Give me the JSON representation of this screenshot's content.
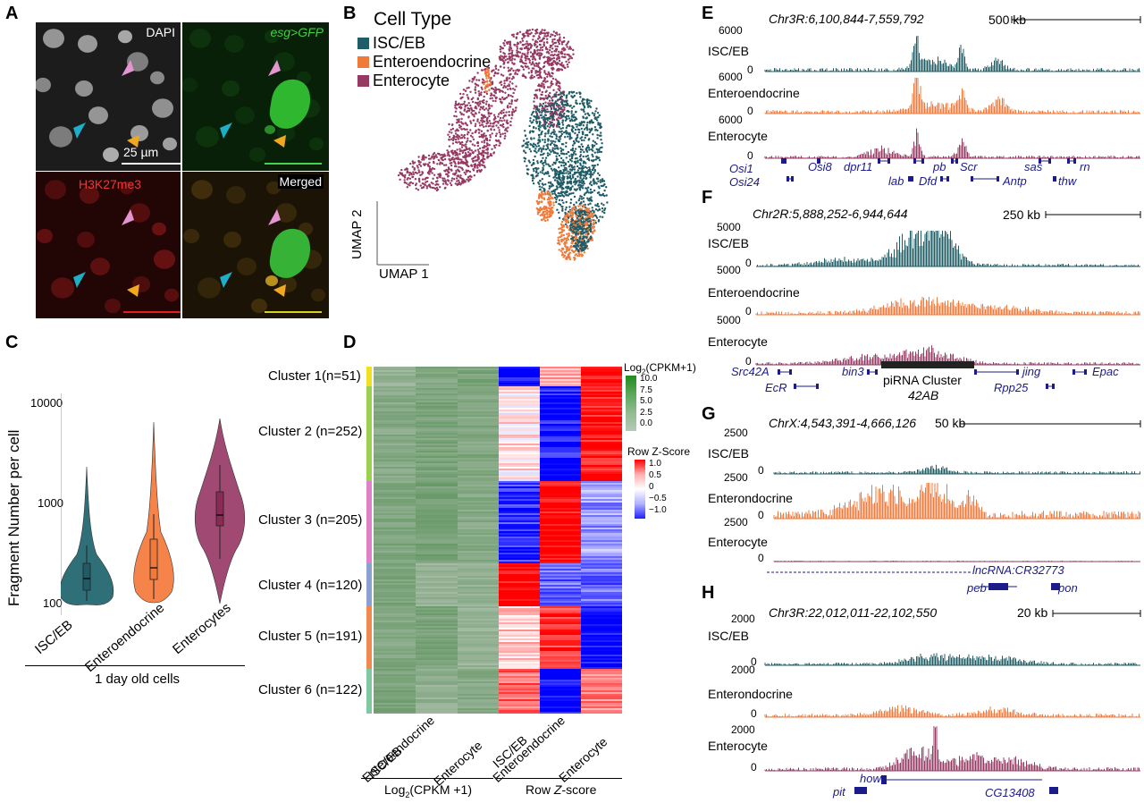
{
  "panel_letters": {
    "a": "A",
    "b": "B",
    "c": "C",
    "d": "D",
    "e": "E",
    "f": "F",
    "g": "G",
    "h": "H"
  },
  "micrographs": {
    "dapi": "DAPI",
    "esg": "esg>GFP",
    "h3k": "H3K27me3",
    "merged": "Merged",
    "scale": "25 µm",
    "colors": {
      "dapi_bg": "#1a1a1a",
      "esg_bg": "#072007",
      "h3k_bg": "#260707",
      "merged_bg": "#1c1408"
    }
  },
  "umap": {
    "legend_title": "Cell Type",
    "legend": [
      {
        "label": "ISC/EB",
        "color": "#1f5c66"
      },
      {
        "label": "Enteroendocrine",
        "color": "#f07a3a"
      },
      {
        "label": "Enterocyte",
        "color": "#963a63"
      }
    ],
    "axis_x": "UMAP 1",
    "axis_y": "UMAP 2"
  },
  "violin": {
    "ylabel": "Fragment Number per cell",
    "yticks": [
      "10000",
      "1000",
      "100"
    ],
    "categories": [
      "ISC/EB",
      "Enteroendocrine",
      "Enterocytes"
    ],
    "group_label": "1 day old cells"
  },
  "heatmap": {
    "clusters": [
      "Cluster 1(n=51)",
      "Cluster 2 (n=252)",
      "Cluster 3 (n=205)",
      "Cluster 4 (n=120)",
      "Cluster 5 (n=191)",
      "Cluster 6 (n=122)"
    ],
    "cols": [
      "ISC/EB",
      "Enteroendocrine",
      "Enterocyte",
      "ISC/EB",
      "Enteroendocrine",
      "Enterocyte"
    ],
    "group1": "Log2(CPKM +1)",
    "group2": "Row Z-score",
    "legend1_title": "Log2(CPKM+1)",
    "legend1_ticks": [
      "10.0",
      "7.5",
      "5.0",
      "2.5",
      "0.0"
    ],
    "legend2_title": "Row Z-Score",
    "legend2_ticks": [
      "1.0",
      "0.5",
      "0",
      "−0.5",
      "−1.0"
    ]
  },
  "tracks": {
    "e": {
      "region": "Chr3R:6,100,844-7,559,792",
      "scale": "500 kb",
      "ymax": "6000",
      "rows": [
        "ISC/EB",
        "Enteroendocrine",
        "Enterocyte"
      ],
      "genes": [
        "Osi1",
        "Osi8",
        "dpr11",
        "pb",
        "Scr",
        "sas",
        "rn",
        "Osi24",
        "lab",
        "Dfd",
        "Antp",
        "thw"
      ]
    },
    "f": {
      "region": "Chr2R:5,888,252-6,944,644",
      "scale": "250 kb",
      "ymax": "5000",
      "rows": [
        "ISC/EB",
        "Enteroendocrine",
        "Enterocyte"
      ],
      "genes": [
        "Src42A",
        "bin3",
        "jing",
        "Epac",
        "EcR",
        "Rpp25"
      ],
      "pirna": "piRNA Cluster",
      "pirna2": "42AB"
    },
    "g": {
      "region": "ChrX:4,543,391-4,666,126",
      "scale": "50 kb",
      "ymax": "2500",
      "rows": [
        "ISC/EB",
        "Enterondocrine",
        "Enterocyte"
      ],
      "genes": [
        "lncRNA:CR32773",
        "peb",
        "pon"
      ]
    },
    "h": {
      "region": "Chr3R:22,012,011-22,102,550",
      "scale": "20 kb",
      "ymax": "2000",
      "rows": [
        "ISC/EB",
        "Enterondocrine",
        "Enterocyte"
      ],
      "genes": [
        "how",
        "pit",
        "CG13408"
      ]
    }
  },
  "colors": {
    "isc": "#1f5c66",
    "ee": "#f07a3a",
    "ec": "#963a63",
    "gene": "#1b1b8a"
  }
}
